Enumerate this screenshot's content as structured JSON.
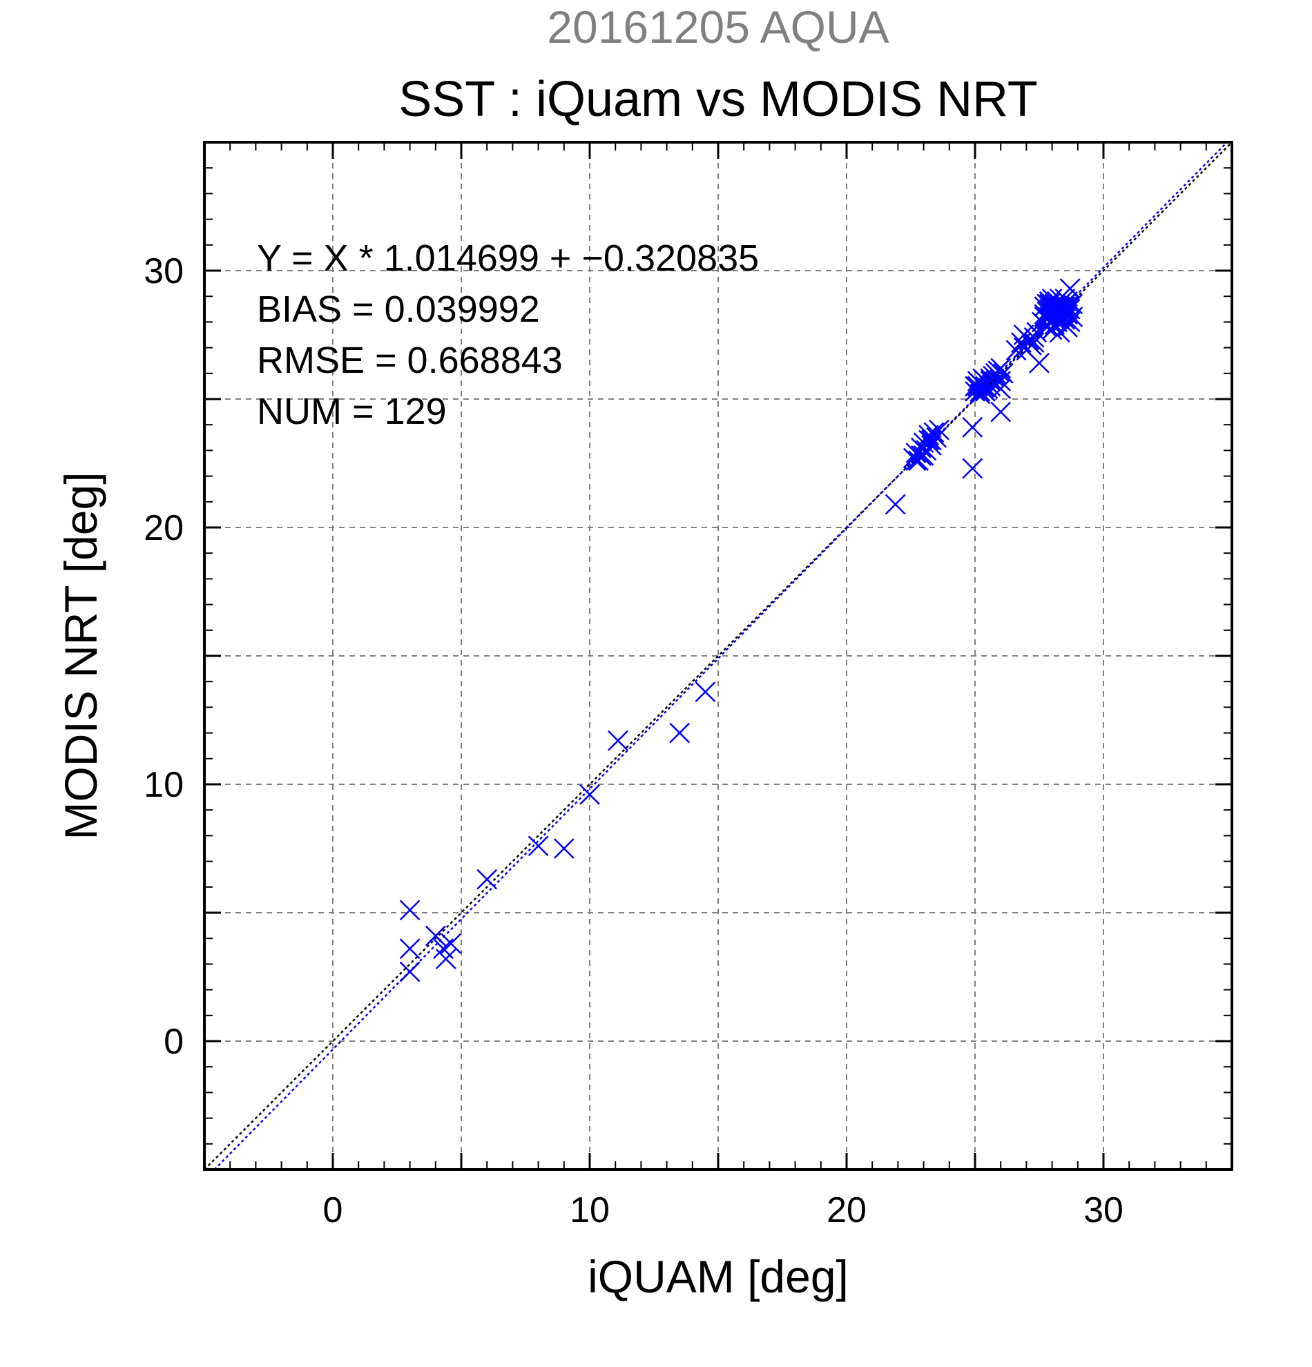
{
  "chart_data": {
    "type": "scatter",
    "title_date": "20161205 AQUA",
    "title": "SST : iQuam vs MODIS NRT",
    "xlabel": "iQUAM [deg]",
    "ylabel": "MODIS NRT [deg]",
    "xlim": [
      -5,
      35
    ],
    "ylim": [
      -5,
      35
    ],
    "xticks": [
      0,
      10,
      20,
      30
    ],
    "yticks": [
      0,
      10,
      20,
      30
    ],
    "xtick_labels": [
      "0",
      "10",
      "20",
      "30"
    ],
    "ytick_labels": [
      "0",
      "10",
      "20",
      "30"
    ],
    "grid": true,
    "stats": [
      "Y = X * 1.014699 + −0.320835",
      "BIAS = 0.039992",
      "RMSE = 0.668843",
      "NUM = 129"
    ],
    "fit": {
      "slope": 1.014699,
      "intercept": -0.320835
    },
    "colors": {
      "points": "#0000ff",
      "fit_line": "#0000ff",
      "identity_line": "#000000",
      "grid": "#808080",
      "title_date": "#808080"
    },
    "series": [
      {
        "marker": "x",
        "points": [
          [
            3.0,
            5.1
          ],
          [
            3.0,
            3.6
          ],
          [
            3.0,
            2.7
          ],
          [
            4.0,
            4.1
          ],
          [
            4.3,
            3.6
          ],
          [
            4.4,
            3.2
          ],
          [
            4.6,
            3.8
          ],
          [
            6.0,
            6.3
          ],
          [
            8.0,
            7.6
          ],
          [
            9.0,
            7.5
          ],
          [
            10.0,
            9.6
          ],
          [
            11.1,
            11.7
          ],
          [
            13.5,
            12.0
          ],
          [
            14.5,
            13.6
          ],
          [
            21.9,
            20.9
          ],
          [
            22.6,
            22.7
          ],
          [
            22.7,
            22.9
          ],
          [
            22.8,
            22.6
          ],
          [
            22.9,
            22.8
          ],
          [
            23.0,
            23.3
          ],
          [
            23.1,
            23.0
          ],
          [
            23.2,
            23.6
          ],
          [
            23.3,
            23.2
          ],
          [
            23.4,
            23.7
          ],
          [
            23.5,
            23.5
          ],
          [
            23.2,
            23.4
          ],
          [
            22.9,
            23.1
          ],
          [
            23.6,
            23.8
          ],
          [
            24.9,
            23.9
          ],
          [
            24.9,
            22.3
          ],
          [
            25.0,
            25.5
          ],
          [
            25.0,
            25.3
          ],
          [
            25.1,
            25.7
          ],
          [
            25.1,
            25.4
          ],
          [
            25.2,
            25.6
          ],
          [
            25.2,
            25.2
          ],
          [
            25.3,
            25.8
          ],
          [
            25.3,
            25.5
          ],
          [
            25.4,
            25.3
          ],
          [
            25.4,
            25.7
          ],
          [
            25.5,
            25.6
          ],
          [
            25.5,
            25.4
          ],
          [
            25.6,
            25.8
          ],
          [
            25.6,
            25.5
          ],
          [
            25.7,
            25.9
          ],
          [
            25.8,
            25.6
          ],
          [
            25.8,
            26.0
          ],
          [
            25.9,
            26.1
          ],
          [
            26.0,
            25.7
          ],
          [
            26.0,
            26.2
          ],
          [
            26.1,
            26.0
          ],
          [
            26.0,
            25.4
          ],
          [
            26.0,
            24.5
          ],
          [
            26.6,
            26.9
          ],
          [
            26.8,
            27.2
          ],
          [
            26.9,
            27.5
          ],
          [
            27.0,
            26.9
          ],
          [
            27.1,
            27.3
          ],
          [
            27.2,
            27.1
          ],
          [
            27.3,
            27.4
          ],
          [
            27.4,
            27.6
          ],
          [
            27.5,
            26.4
          ],
          [
            27.6,
            28.0
          ],
          [
            27.7,
            28.3
          ],
          [
            27.7,
            28.6
          ],
          [
            27.8,
            28.1
          ],
          [
            27.8,
            28.4
          ],
          [
            27.8,
            28.7
          ],
          [
            27.9,
            28.2
          ],
          [
            27.9,
            28.5
          ],
          [
            27.9,
            28.8
          ],
          [
            28.0,
            28.0
          ],
          [
            28.0,
            28.3
          ],
          [
            28.0,
            28.6
          ],
          [
            28.0,
            28.9
          ],
          [
            28.1,
            28.1
          ],
          [
            28.1,
            28.4
          ],
          [
            28.1,
            28.7
          ],
          [
            28.1,
            27.9
          ],
          [
            28.2,
            28.2
          ],
          [
            28.2,
            28.5
          ],
          [
            28.2,
            28.8
          ],
          [
            28.2,
            28.0
          ],
          [
            28.3,
            28.3
          ],
          [
            28.3,
            28.6
          ],
          [
            28.3,
            28.9
          ],
          [
            28.3,
            27.6
          ],
          [
            28.4,
            28.2
          ],
          [
            28.4,
            28.5
          ],
          [
            28.4,
            28.8
          ],
          [
            28.4,
            28.0
          ],
          [
            28.5,
            28.4
          ],
          [
            28.5,
            28.7
          ],
          [
            28.5,
            28.1
          ],
          [
            28.5,
            28.9
          ],
          [
            28.6,
            28.3
          ],
          [
            28.6,
            28.6
          ],
          [
            28.6,
            28.8
          ],
          [
            28.6,
            27.8
          ],
          [
            28.7,
            28.5
          ],
          [
            28.7,
            29.3
          ],
          [
            28.8,
            28.7
          ],
          [
            28.8,
            28.2
          ],
          [
            28.7,
            28.0
          ],
          [
            27.8,
            27.8
          ],
          [
            28.0,
            27.7
          ],
          [
            27.9,
            28.0
          ],
          [
            28.3,
            28.1
          ],
          [
            28.1,
            28.6
          ],
          [
            28.4,
            28.4
          ],
          [
            28.2,
            28.3
          ],
          [
            27.7,
            28.2
          ],
          [
            28.5,
            28.6
          ],
          [
            28.0,
            28.4
          ],
          [
            28.6,
            28.4
          ],
          [
            27.9,
            28.7
          ],
          [
            28.3,
            28.7
          ],
          [
            25.2,
            25.3
          ],
          [
            25.4,
            25.5
          ],
          [
            25.1,
            25.5
          ],
          [
            25.6,
            25.7
          ],
          [
            23.0,
            22.8
          ],
          [
            23.3,
            23.4
          ],
          [
            22.7,
            22.6
          ],
          [
            26.9,
            27.0
          ],
          [
            27.3,
            27.2
          ],
          [
            28.2,
            28.5
          ],
          [
            28.4,
            28.2
          ],
          [
            28.1,
            28.2
          ]
        ]
      }
    ]
  }
}
